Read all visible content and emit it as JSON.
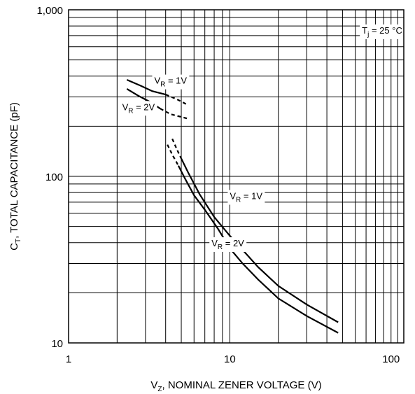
{
  "chart_data": {
    "type": "line",
    "xscale": "log",
    "yscale": "log",
    "xlim": [
      1,
      120
    ],
    "ylim": [
      10,
      1000
    ],
    "grid": true,
    "xlabel": {
      "main": "V",
      "sub": "Z",
      "rest": ", NOMINAL ZENER VOLTAGE (V)"
    },
    "ylabel": {
      "main": "C",
      "sub": "T",
      "rest": ", TOTAL CAPACITANCE (pF)"
    },
    "x_ticks": [
      {
        "value": 1,
        "label": "1"
      },
      {
        "value": 10,
        "label": "10"
      },
      {
        "value": 100,
        "label": "100"
      }
    ],
    "y_ticks": [
      {
        "value": 10,
        "label": "10"
      },
      {
        "value": 100,
        "label": "100"
      },
      {
        "value": 1000,
        "label": "1,000"
      }
    ],
    "series": [
      {
        "name": "VR = 1V (low voltage)",
        "solid": [
          [
            2.3,
            380
          ],
          [
            2.8,
            350
          ],
          [
            3.3,
            325
          ],
          [
            4.0,
            310
          ]
        ],
        "dashed": [
          [
            4.0,
            310
          ],
          [
            4.7,
            290
          ],
          [
            5.5,
            268
          ]
        ]
      },
      {
        "name": "VR = 2V (low voltage)",
        "solid": [
          [
            2.3,
            335
          ],
          [
            2.7,
            305
          ],
          [
            3.2,
            280
          ],
          [
            3.7,
            255
          ]
        ],
        "dashed": [
          [
            3.7,
            255
          ],
          [
            4.3,
            236
          ],
          [
            5.5,
            222
          ]
        ]
      },
      {
        "name": "VR = 1V (high voltage)",
        "dashed": [
          [
            4.4,
            168
          ],
          [
            4.7,
            145
          ],
          [
            5.0,
            128
          ]
        ],
        "solid": [
          [
            5.0,
            128
          ],
          [
            5.5,
            106
          ],
          [
            6.5,
            78
          ],
          [
            8,
            57
          ],
          [
            10,
            44
          ],
          [
            15,
            28.5
          ],
          [
            20,
            22
          ],
          [
            30,
            17
          ],
          [
            47,
            13.3
          ]
        ]
      },
      {
        "name": "VR = 2V (high voltage)",
        "dashed": [
          [
            4.1,
            155
          ],
          [
            4.4,
            135
          ],
          [
            4.8,
            116
          ]
        ],
        "solid": [
          [
            4.8,
            116
          ],
          [
            5.3,
            96
          ],
          [
            6,
            77
          ],
          [
            7,
            63
          ],
          [
            8.5,
            48
          ],
          [
            10,
            37
          ],
          [
            12,
            30
          ],
          [
            15,
            24
          ],
          [
            20,
            18.5
          ],
          [
            30,
            14.5
          ],
          [
            47,
            11.5
          ]
        ]
      }
    ],
    "annotations": [
      {
        "main": "V",
        "sub": "R",
        "rest": " = 1V",
        "x": 3.4,
        "y": 360,
        "anchor": "start"
      },
      {
        "main": "V",
        "sub": "R",
        "rest": " = 2V",
        "x": 2.15,
        "y": 250,
        "anchor": "start"
      },
      {
        "main": "V",
        "sub": "R",
        "rest": " = 1V",
        "x": 10.0,
        "y": 73,
        "anchor": "start"
      },
      {
        "main": "V",
        "sub": "R",
        "rest": " = 2V",
        "x": 7.7,
        "y": 38,
        "anchor": "start"
      },
      {
        "main": "T",
        "sub": "j",
        "rest": " = 25 °C",
        "x": 66,
        "y": 720,
        "anchor": "start"
      }
    ]
  }
}
